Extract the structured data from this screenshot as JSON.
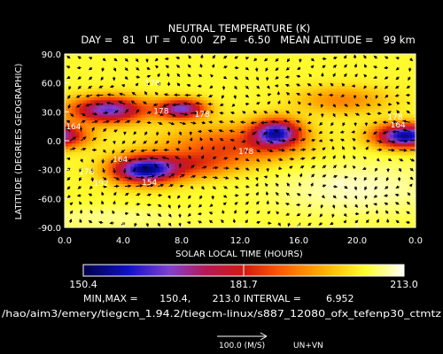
{
  "chart_data": {
    "type": "heatmap",
    "title": "NEUTRAL TEMPERATURE (K)",
    "subtitle": "DAY =   81   UT =   0.00   ZP =  -6.50   MEAN ALTITUDE =   99 km",
    "xlabel": "SOLAR LOCAL TIME (HOURS)",
    "ylabel": "LATITUDE (DEGREES GEOGRAPHIC)",
    "xlim": [
      0,
      24
    ],
    "ylim": [
      -90,
      90
    ],
    "x_ticks": [
      "0.0",
      "4.0",
      "8.0",
      "12.0",
      "16.0",
      "20.0",
      "0.0"
    ],
    "y_ticks": [
      "90.0",
      "60.0",
      "30.0",
      "0.0",
      "-30.0",
      "-60.0",
      "-90.0"
    ],
    "colorbar_ticks": [
      "150.4",
      "181.7",
      "213.0"
    ],
    "colorbar_min": 150.4,
    "colorbar_max": 213.0,
    "contour_labels": [
      {
        "text": "176",
        "x": 6.0,
        "y": 57
      },
      {
        "text": "178",
        "x": 6.6,
        "y": 28
      },
      {
        "text": "164",
        "x": 0.6,
        "y": 12
      },
      {
        "text": "178",
        "x": 9.4,
        "y": 25
      },
      {
        "text": "164",
        "x": 3.8,
        "y": -22
      },
      {
        "text": "154",
        "x": 5.8,
        "y": -46
      },
      {
        "text": "178",
        "x": 1.5,
        "y": -35
      },
      {
        "text": "192",
        "x": 2.5,
        "y": -47
      },
      {
        "text": "178",
        "x": 12.4,
        "y": -14
      },
      {
        "text": "178",
        "x": 22.6,
        "y": 22
      },
      {
        "text": "164",
        "x": 22.8,
        "y": 14
      },
      {
        "text": "178",
        "x": 18.6,
        "y": -47
      }
    ],
    "colors": {
      "low": "#000046",
      "mid": "#d01a10",
      "high": "#ffffff",
      "contour": "#ffffff",
      "arrow": "#000000"
    },
    "vector_reference": "100.0 (M/S)",
    "vector_field": "UN+VN"
  },
  "stats_line": "MIN,MAX =       150.4,       213.0 INTERVAL =        6.952",
  "file_path": "/hao/aim3/emery/tiegcm_1.94.2/tiegcm-linux/s887_12080_ofx_tefenp30_ctmtz"
}
